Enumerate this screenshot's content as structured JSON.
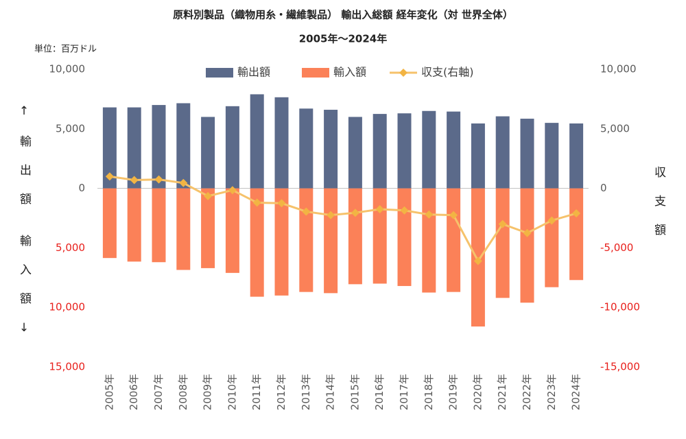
{
  "chart_data": {
    "type": "bar_line",
    "title": "原料別製品（織物用糸・繊維製品） 輸出入総額 経年変化（対 世界全体）",
    "subtitle": "2005年～2024年",
    "unit_label": "単位：百万ドル",
    "y_label_top": "↑輸出額",
    "y_label_bottom": "輸入額↓",
    "y2_label": "収支額",
    "categories": [
      "2005年",
      "2006年",
      "2007年",
      "2008年",
      "2009年",
      "2010年",
      "2011年",
      "2012年",
      "2013年",
      "2014年",
      "2015年",
      "2016年",
      "2017年",
      "2018年",
      "2019年",
      "2020年",
      "2021年",
      "2022年",
      "2023年",
      "2024年"
    ],
    "series": [
      {
        "name": "輸出額",
        "color": "#5b6a8a",
        "axis": "y",
        "kind": "bar",
        "values": [
          6800,
          6800,
          7000,
          7150,
          6000,
          6900,
          7900,
          7650,
          6700,
          6600,
          6000,
          6250,
          6300,
          6500,
          6450,
          5450,
          6050,
          5850,
          5500,
          5450
        ]
      },
      {
        "name": "輸入額",
        "color": "#fb8158",
        "axis": "y",
        "kind": "bar",
        "values": [
          -5850,
          -6150,
          -6200,
          -6850,
          -6700,
          -7100,
          -9100,
          -9000,
          -8700,
          -8800,
          -8050,
          -8000,
          -8200,
          -8750,
          -8700,
          -11600,
          -9200,
          -9600,
          -8300,
          -7700
        ]
      },
      {
        "name": "収支(右軸)",
        "color": "#f6c26b",
        "marker_color": "#f2b443",
        "axis": "y2",
        "kind": "line",
        "values": [
          1000,
          700,
          750,
          450,
          -650,
          -150,
          -1200,
          -1250,
          -1950,
          -2250,
          -2050,
          -1750,
          -1850,
          -2200,
          -2250,
          -6100,
          -3000,
          -3750,
          -2700,
          -2100
        ]
      }
    ],
    "ylim": [
      -15000,
      10000
    ],
    "yticks": [
      {
        "value": -15000,
        "label": "15,000"
      },
      {
        "value": -10000,
        "label": "10,000"
      },
      {
        "value": -5000,
        "label": "5,000"
      },
      0,
      {
        "value": 5000,
        "label": "5,000"
      },
      {
        "value": 10000,
        "label": "10,000"
      }
    ],
    "y2lim": [
      -15000,
      10000
    ],
    "y2ticks": [
      {
        "value": -15000,
        "label": "-15,000"
      },
      {
        "value": -10000,
        "label": "-10,000"
      },
      {
        "value": -5000,
        "label": "-5,000"
      },
      0,
      {
        "value": 5000,
        "label": "5,000"
      },
      {
        "value": 10000,
        "label": "10,000"
      }
    ],
    "negative_tick_color": "#e8201c",
    "tick_color": "#595959",
    "grid": false,
    "legend": "top"
  }
}
